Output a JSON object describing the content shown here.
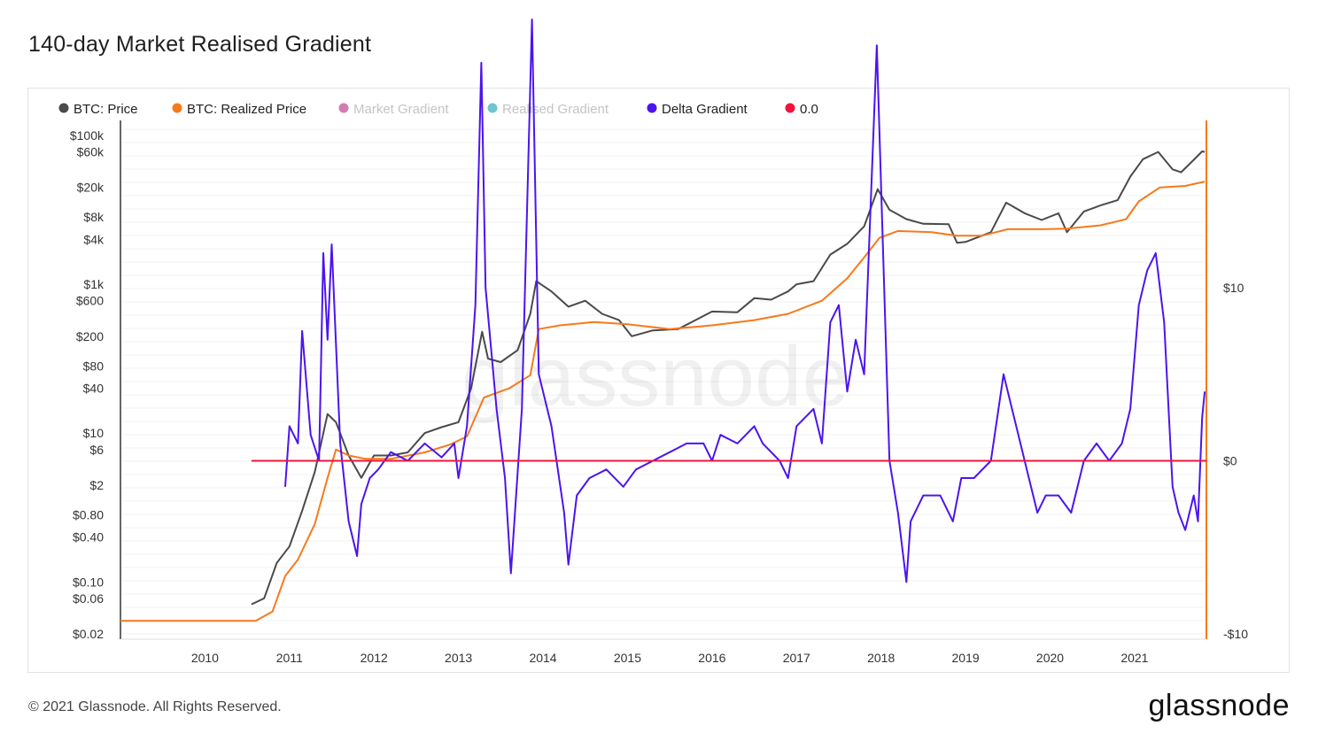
{
  "page": {
    "title": "140-day Market Realised Gradient",
    "copyright": "© 2021 Glassnode. All Rights Reserved.",
    "logo": "glassnode",
    "watermark": "glassnode"
  },
  "chart_data": {
    "type": "line",
    "title": "140-day Market Realised Gradient",
    "legend_position": "top-left",
    "legend": [
      {
        "label": "BTC: Price",
        "color": "#4a4a4a",
        "muted": false
      },
      {
        "label": "BTC: Realized Price",
        "color": "#f7791c",
        "muted": false
      },
      {
        "label": "Market Gradient",
        "color": "#d37cb4",
        "muted": true
      },
      {
        "label": "Realised Gradient",
        "color": "#6fc5d0",
        "muted": true
      },
      {
        "label": "Delta Gradient",
        "color": "#4b14f0",
        "muted": false
      },
      {
        "label": "0.0",
        "color": "#f0143c",
        "muted": false
      }
    ],
    "x_axis": {
      "type": "time",
      "range": [
        2009.0,
        2021.85
      ],
      "tick_labels": [
        "2010",
        "2011",
        "2012",
        "2013",
        "2014",
        "2015",
        "2016",
        "2017",
        "2018",
        "2019",
        "2020",
        "2021"
      ],
      "tick_values": [
        2010,
        2011,
        2012,
        2013,
        2014,
        2015,
        2016,
        2017,
        2018,
        2019,
        2020,
        2021
      ]
    },
    "y_left": {
      "scale": "log",
      "range": [
        0.02,
        100000
      ],
      "tick_labels": [
        "$100k",
        "$60k",
        "$20k",
        "$8k",
        "$4k",
        "$1k",
        "$600",
        "$200",
        "$80",
        "$40",
        "$10",
        "$6",
        "$2",
        "$0.80",
        "$0.40",
        "$0.10",
        "$0.06",
        "$0.02"
      ],
      "tick_values": [
        100000,
        60000,
        20000,
        8000,
        4000,
        1000,
        600,
        200,
        80,
        40,
        10,
        6,
        2,
        0.8,
        0.4,
        0.1,
        0.06,
        0.02
      ]
    },
    "y_right": {
      "scale": "linear",
      "range": [
        -10,
        20
      ],
      "tick_labels": [
        "$10",
        "$0",
        "-$10"
      ],
      "tick_values": [
        10,
        0,
        -10
      ]
    },
    "grid": true,
    "series": [
      {
        "name": "BTC: Price",
        "axis": "left",
        "color": "#4a4a4a",
        "points": [
          [
            2010.55,
            0.05
          ],
          [
            2010.7,
            0.06
          ],
          [
            2010.85,
            0.18
          ],
          [
            2011.0,
            0.3
          ],
          [
            2011.15,
            0.9
          ],
          [
            2011.3,
            3
          ],
          [
            2011.45,
            18
          ],
          [
            2011.55,
            14
          ],
          [
            2011.7,
            5
          ],
          [
            2011.85,
            2.5
          ],
          [
            2012.0,
            5
          ],
          [
            2012.2,
            5
          ],
          [
            2012.4,
            5.5
          ],
          [
            2012.6,
            10
          ],
          [
            2012.8,
            12
          ],
          [
            2013.0,
            14
          ],
          [
            2013.15,
            40
          ],
          [
            2013.28,
            230
          ],
          [
            2013.35,
            100
          ],
          [
            2013.5,
            90
          ],
          [
            2013.7,
            130
          ],
          [
            2013.85,
            400
          ],
          [
            2013.92,
            1100
          ],
          [
            2014.1,
            800
          ],
          [
            2014.3,
            500
          ],
          [
            2014.5,
            600
          ],
          [
            2014.7,
            400
          ],
          [
            2014.9,
            330
          ],
          [
            2015.05,
            200
          ],
          [
            2015.3,
            240
          ],
          [
            2015.6,
            250
          ],
          [
            2015.85,
            350
          ],
          [
            2016.0,
            430
          ],
          [
            2016.3,
            420
          ],
          [
            2016.5,
            650
          ],
          [
            2016.7,
            620
          ],
          [
            2016.9,
            800
          ],
          [
            2017.0,
            1000
          ],
          [
            2017.2,
            1100
          ],
          [
            2017.4,
            2500
          ],
          [
            2017.6,
            3500
          ],
          [
            2017.8,
            6000
          ],
          [
            2017.96,
            19000
          ],
          [
            2018.1,
            10000
          ],
          [
            2018.3,
            7500
          ],
          [
            2018.5,
            6500
          ],
          [
            2018.8,
            6400
          ],
          [
            2018.9,
            3600
          ],
          [
            2019.0,
            3700
          ],
          [
            2019.3,
            5000
          ],
          [
            2019.48,
            12500
          ],
          [
            2019.7,
            9000
          ],
          [
            2019.9,
            7300
          ],
          [
            2020.1,
            9000
          ],
          [
            2020.2,
            5000
          ],
          [
            2020.4,
            9500
          ],
          [
            2020.6,
            11500
          ],
          [
            2020.8,
            13500
          ],
          [
            2020.95,
            28000
          ],
          [
            2021.1,
            48000
          ],
          [
            2021.28,
            60000
          ],
          [
            2021.45,
            35000
          ],
          [
            2021.55,
            32000
          ],
          [
            2021.7,
            47000
          ],
          [
            2021.8,
            61000
          ],
          [
            2021.83,
            60000
          ]
        ]
      },
      {
        "name": "BTC: Realized Price",
        "axis": "left",
        "color": "#f7791c",
        "points": [
          [
            2009.0,
            0.03
          ],
          [
            2010.6,
            0.03
          ],
          [
            2010.8,
            0.04
          ],
          [
            2010.95,
            0.12
          ],
          [
            2011.1,
            0.2
          ],
          [
            2011.3,
            0.6
          ],
          [
            2011.45,
            2.5
          ],
          [
            2011.55,
            6
          ],
          [
            2011.7,
            5
          ],
          [
            2011.9,
            4.5
          ],
          [
            2012.2,
            4.5
          ],
          [
            2012.6,
            5.5
          ],
          [
            2012.9,
            7
          ],
          [
            2013.1,
            9
          ],
          [
            2013.3,
            30
          ],
          [
            2013.6,
            40
          ],
          [
            2013.85,
            60
          ],
          [
            2013.95,
            250
          ],
          [
            2014.2,
            280
          ],
          [
            2014.6,
            310
          ],
          [
            2015.0,
            290
          ],
          [
            2015.5,
            250
          ],
          [
            2016.0,
            280
          ],
          [
            2016.5,
            330
          ],
          [
            2016.9,
            400
          ],
          [
            2017.3,
            600
          ],
          [
            2017.6,
            1200
          ],
          [
            2017.8,
            2300
          ],
          [
            2017.98,
            4200
          ],
          [
            2018.2,
            5200
          ],
          [
            2018.6,
            5000
          ],
          [
            2018.9,
            4500
          ],
          [
            2019.2,
            4500
          ],
          [
            2019.5,
            5500
          ],
          [
            2019.9,
            5500
          ],
          [
            2020.2,
            5600
          ],
          [
            2020.6,
            6200
          ],
          [
            2020.9,
            7500
          ],
          [
            2021.05,
            13000
          ],
          [
            2021.3,
            20000
          ],
          [
            2021.6,
            21000
          ],
          [
            2021.83,
            24000
          ]
        ]
      },
      {
        "name": "Delta Gradient",
        "axis": "right",
        "color": "#4b14f0",
        "points": [
          [
            2010.95,
            -1.5
          ],
          [
            2011.0,
            2
          ],
          [
            2011.1,
            1
          ],
          [
            2011.15,
            7.5
          ],
          [
            2011.25,
            1.5
          ],
          [
            2011.35,
            0
          ],
          [
            2011.4,
            12
          ],
          [
            2011.45,
            7
          ],
          [
            2011.5,
            12.5
          ],
          [
            2011.6,
            1
          ],
          [
            2011.7,
            -3.5
          ],
          [
            2011.8,
            -5.5
          ],
          [
            2011.85,
            -2.5
          ],
          [
            2011.95,
            -1
          ],
          [
            2012.05,
            -0.5
          ],
          [
            2012.2,
            0.5
          ],
          [
            2012.4,
            0
          ],
          [
            2012.6,
            1
          ],
          [
            2012.8,
            0.2
          ],
          [
            2012.95,
            1
          ],
          [
            2013.0,
            -1
          ],
          [
            2013.1,
            2
          ],
          [
            2013.2,
            9
          ],
          [
            2013.27,
            23
          ],
          [
            2013.32,
            10
          ],
          [
            2013.45,
            3
          ],
          [
            2013.55,
            -1
          ],
          [
            2013.62,
            -6.5
          ],
          [
            2013.75,
            3
          ],
          [
            2013.87,
            25.5
          ],
          [
            2013.95,
            5
          ],
          [
            2014.1,
            2
          ],
          [
            2014.25,
            -3
          ],
          [
            2014.3,
            -6
          ],
          [
            2014.4,
            -2
          ],
          [
            2014.55,
            -1
          ],
          [
            2014.75,
            -0.5
          ],
          [
            2014.95,
            -1.5
          ],
          [
            2015.1,
            -0.5
          ],
          [
            2015.3,
            0
          ],
          [
            2015.5,
            0.5
          ],
          [
            2015.7,
            1
          ],
          [
            2015.9,
            1
          ],
          [
            2016.0,
            0
          ],
          [
            2016.1,
            1.5
          ],
          [
            2016.3,
            1
          ],
          [
            2016.5,
            2
          ],
          [
            2016.6,
            1
          ],
          [
            2016.8,
            0
          ],
          [
            2016.9,
            -1
          ],
          [
            2017.0,
            2
          ],
          [
            2017.2,
            3
          ],
          [
            2017.3,
            1
          ],
          [
            2017.4,
            8
          ],
          [
            2017.5,
            9
          ],
          [
            2017.6,
            4
          ],
          [
            2017.7,
            7
          ],
          [
            2017.8,
            5
          ],
          [
            2017.95,
            24
          ],
          [
            2018.05,
            8
          ],
          [
            2018.1,
            0
          ],
          [
            2018.2,
            -3
          ],
          [
            2018.3,
            -7
          ],
          [
            2018.35,
            -3.5
          ],
          [
            2018.5,
            -2
          ],
          [
            2018.7,
            -2
          ],
          [
            2018.85,
            -3.5
          ],
          [
            2018.95,
            -1
          ],
          [
            2019.1,
            -1
          ],
          [
            2019.3,
            0
          ],
          [
            2019.45,
            5
          ],
          [
            2019.6,
            2
          ],
          [
            2019.75,
            -1
          ],
          [
            2019.85,
            -3
          ],
          [
            2019.95,
            -2
          ],
          [
            2020.1,
            -2
          ],
          [
            2020.25,
            -3
          ],
          [
            2020.4,
            0
          ],
          [
            2020.55,
            1
          ],
          [
            2020.7,
            0
          ],
          [
            2020.85,
            1
          ],
          [
            2020.95,
            3
          ],
          [
            2021.05,
            9
          ],
          [
            2021.15,
            11
          ],
          [
            2021.25,
            12
          ],
          [
            2021.35,
            8
          ],
          [
            2021.45,
            -1.5
          ],
          [
            2021.52,
            -3
          ],
          [
            2021.6,
            -4
          ],
          [
            2021.7,
            -2
          ],
          [
            2021.75,
            -3.5
          ],
          [
            2021.8,
            2.5
          ],
          [
            2021.83,
            4
          ]
        ]
      },
      {
        "name": "0.0",
        "axis": "right",
        "color": "#f0143c",
        "points": [
          [
            2010.55,
            0
          ],
          [
            2021.85,
            0
          ]
        ]
      }
    ]
  }
}
